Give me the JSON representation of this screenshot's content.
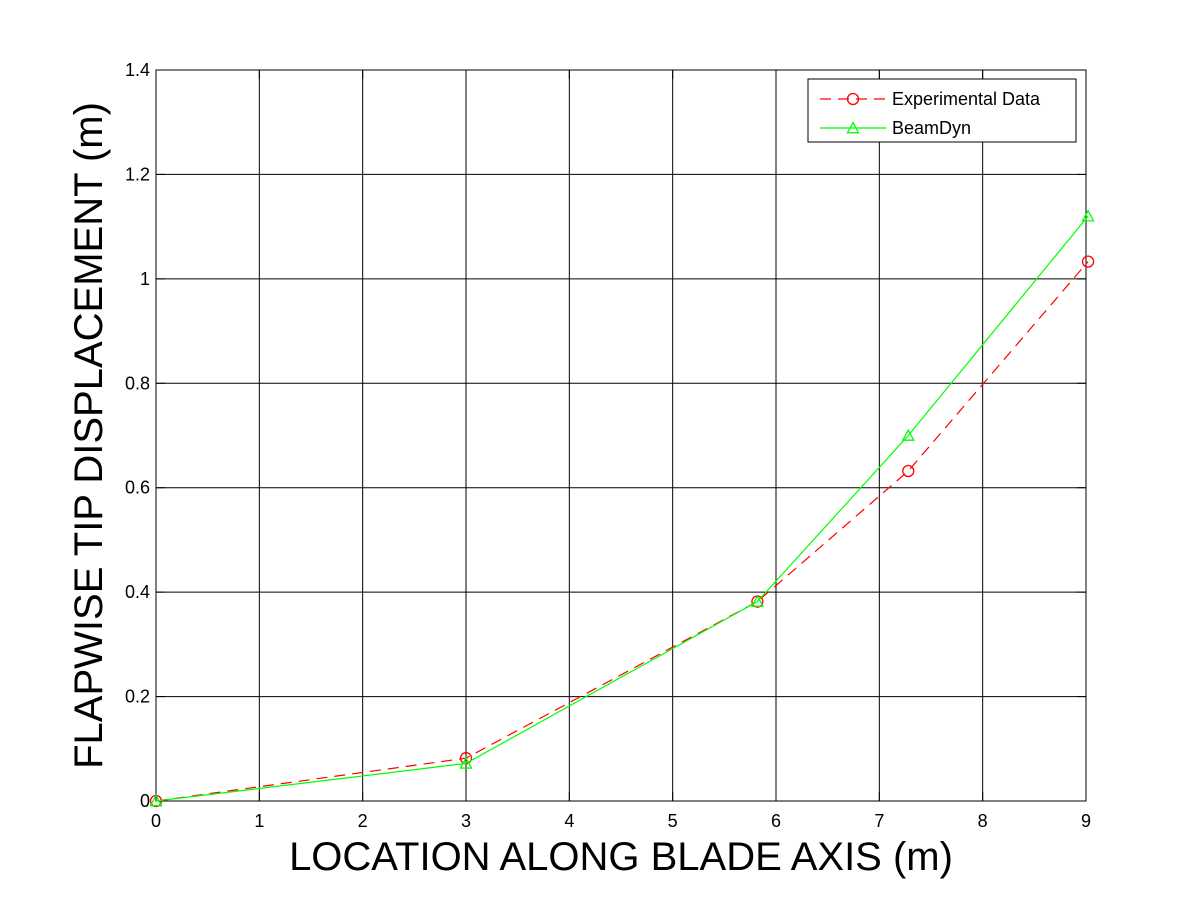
{
  "chart_data": {
    "type": "line",
    "title": "",
    "xlabel": "LOCATION ALONG BLADE AXIS (m)",
    "ylabel": "FLAPWISE TIP DISPLACEMENT (m)",
    "xlim": [
      0,
      9
    ],
    "ylim": [
      0,
      1.4
    ],
    "xticks": [
      0,
      1,
      2,
      3,
      4,
      5,
      6,
      7,
      8,
      9
    ],
    "yticks": [
      0,
      0.2,
      0.4,
      0.6,
      0.8,
      1,
      1.2,
      1.4
    ],
    "xtick_labels": [
      "0",
      "1",
      "2",
      "3",
      "4",
      "5",
      "6",
      "7",
      "8",
      "9"
    ],
    "ytick_labels": [
      "0",
      "0.2",
      "0.4",
      "0.6",
      "0.8",
      "1",
      "1.2",
      "1.4"
    ],
    "grid": true,
    "legend_position": "top-right",
    "series": [
      {
        "name": "Experimental Data",
        "color": "#ff0000",
        "line_style": "dashed",
        "marker": "circle",
        "x": [
          0,
          3.0,
          5.82,
          7.28,
          9.02
        ],
        "y": [
          0,
          0.082,
          0.382,
          0.632,
          1.033
        ]
      },
      {
        "name": "BeamDyn",
        "color": "#00ff00",
        "line_style": "solid",
        "marker": "triangle",
        "x": [
          0,
          3.0,
          5.82,
          7.28,
          9.02
        ],
        "y": [
          0,
          0.072,
          0.382,
          0.7,
          1.12
        ]
      }
    ]
  }
}
